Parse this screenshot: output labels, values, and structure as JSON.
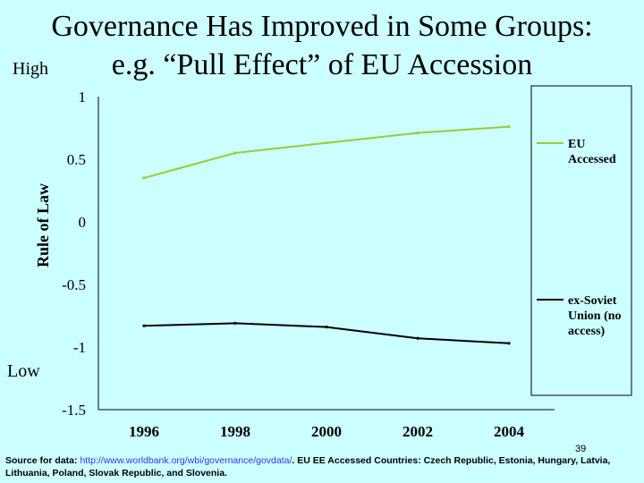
{
  "slide": {
    "title_line1": "Governance Has Improved in Some Groups:",
    "title_line2": "e.g. “Pull Effect” of EU Accession",
    "high_label": "High",
    "low_label": "Low",
    "page_number": "39"
  },
  "footer": {
    "prefix": "Source for data: ",
    "link": "http://www.worldbank.org/wbi/governance/govdata/",
    "suffix": ".  EU EE Accessed Countries: Czech Republic, Estonia, Hungary, Latvia, Lithuania, Poland, Slovak Republic, and Slovenia."
  },
  "chart_data": {
    "type": "line",
    "title": "",
    "xlabel": "",
    "ylabel": "Rule of Law",
    "categories": [
      "1996",
      "1998",
      "2000",
      "2002",
      "2004"
    ],
    "y_ticks": [
      "1",
      "0.5",
      "0",
      "-0.5",
      "-1",
      "-1.5"
    ],
    "ylim": [
      -1.5,
      1
    ],
    "grid": false,
    "legend_position": "right",
    "series": [
      {
        "name": "EU Accessed",
        "color": "#99cc33",
        "values": [
          0.35,
          0.55,
          0.63,
          0.71,
          0.76
        ]
      },
      {
        "name": "ex-Soviet Union (no access)",
        "color": "#000000",
        "values": [
          -0.83,
          -0.81,
          -0.84,
          -0.93,
          -0.97
        ]
      }
    ]
  }
}
